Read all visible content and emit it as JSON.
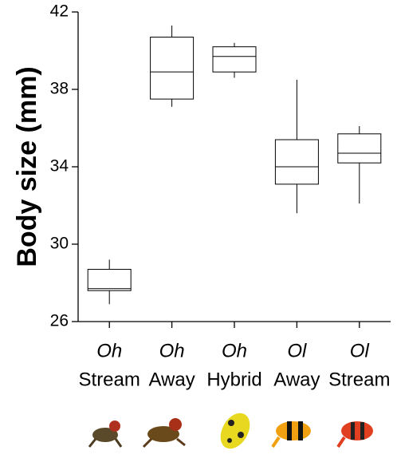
{
  "chart_data": {
    "type": "box",
    "y_label": "Body size (mm)",
    "categories": [
      [
        "Oh",
        "Stream"
      ],
      [
        "Oh",
        "Away"
      ],
      [
        "Oh",
        "Hybrid"
      ],
      [
        "Ol",
        "Away"
      ],
      [
        "Ol",
        "Stream"
      ]
    ],
    "min": [
      26.9,
      37.1,
      38.6,
      31.6,
      32.1
    ],
    "q1": [
      27.6,
      37.5,
      38.9,
      33.1,
      34.2
    ],
    "median": [
      27.7,
      38.9,
      39.7,
      34.0,
      34.7
    ],
    "q3": [
      28.7,
      40.7,
      40.2,
      35.4,
      35.7
    ],
    "max": [
      29.2,
      41.3,
      40.4,
      38.5,
      36.1
    ],
    "color": "#000000",
    "ylim": [
      26,
      42
    ],
    "yticks": [
      26,
      30,
      34,
      38,
      42
    ]
  }
}
